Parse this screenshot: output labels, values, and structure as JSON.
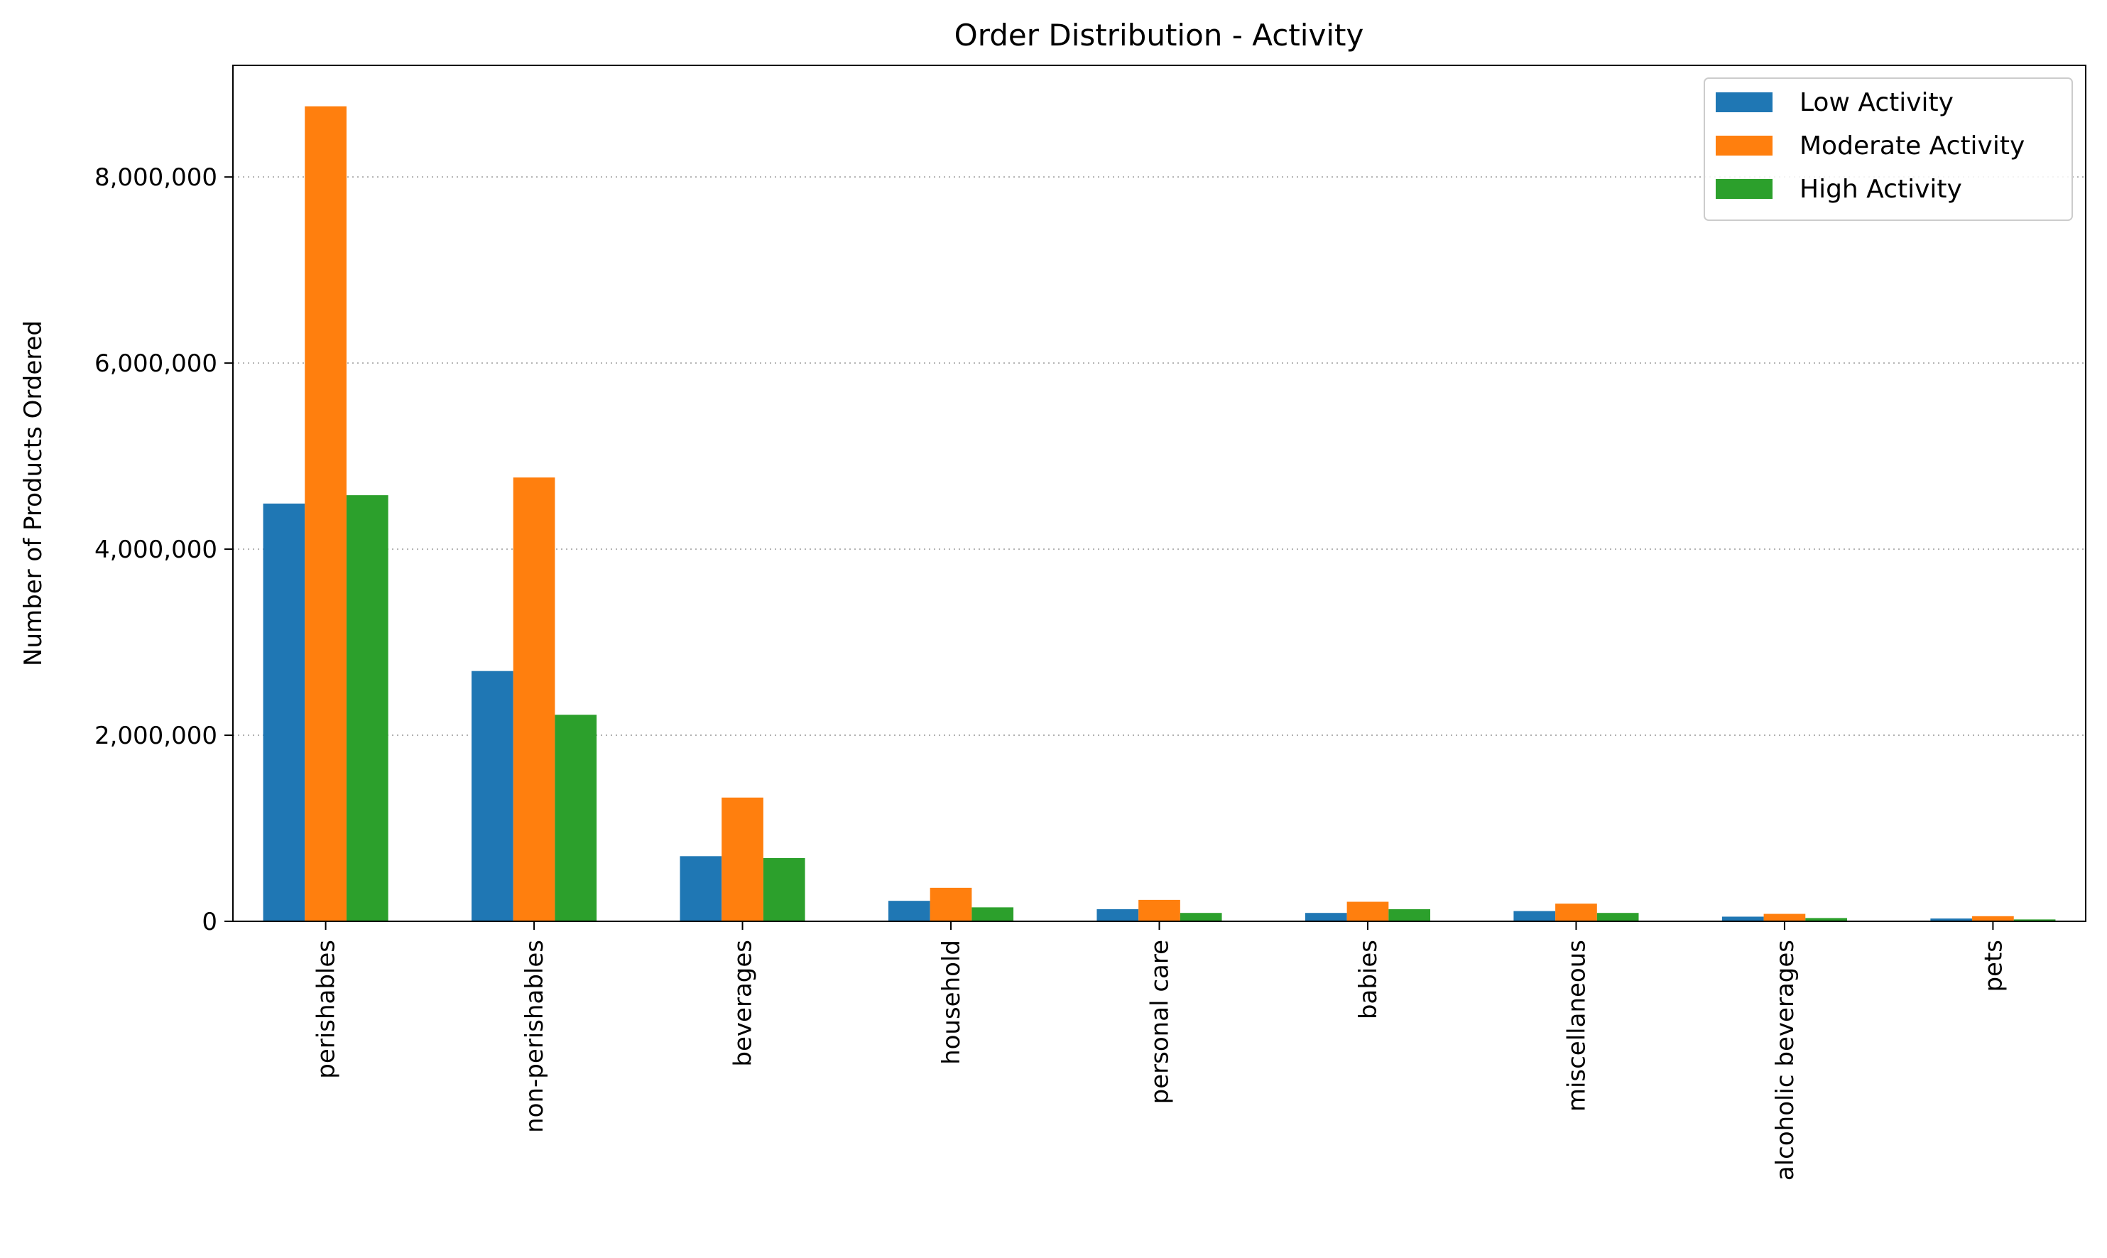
{
  "chart_data": {
    "type": "bar",
    "title": "Order Distribution - Activity",
    "xlabel": "",
    "ylabel": "Number of Products Ordered",
    "ylim": [
      0,
      9200000
    ],
    "yticks": [
      0,
      2000000,
      4000000,
      6000000,
      8000000
    ],
    "ytick_labels": [
      "0",
      "2,000,000",
      "4,000,000",
      "6,000,000",
      "8,000,000"
    ],
    "grid": "y-dotted",
    "legend_position": "top-right",
    "categories": [
      "perishables",
      "non-perishables",
      "beverages",
      "household",
      "personal care",
      "babies",
      "miscellaneous",
      "alcoholic beverages",
      "pets"
    ],
    "series": [
      {
        "name": "Low Activity",
        "color": "#1f77b4",
        "values": [
          4490000,
          2690000,
          700000,
          220000,
          130000,
          90000,
          110000,
          50000,
          30000
        ]
      },
      {
        "name": "Moderate Activity",
        "color": "#ff7f0e",
        "values": [
          8760000,
          4770000,
          1330000,
          360000,
          230000,
          210000,
          190000,
          80000,
          55000
        ]
      },
      {
        "name": "High Activity",
        "color": "#2ca02c",
        "values": [
          4580000,
          2220000,
          680000,
          150000,
          90000,
          130000,
          90000,
          35000,
          20000
        ]
      }
    ]
  }
}
